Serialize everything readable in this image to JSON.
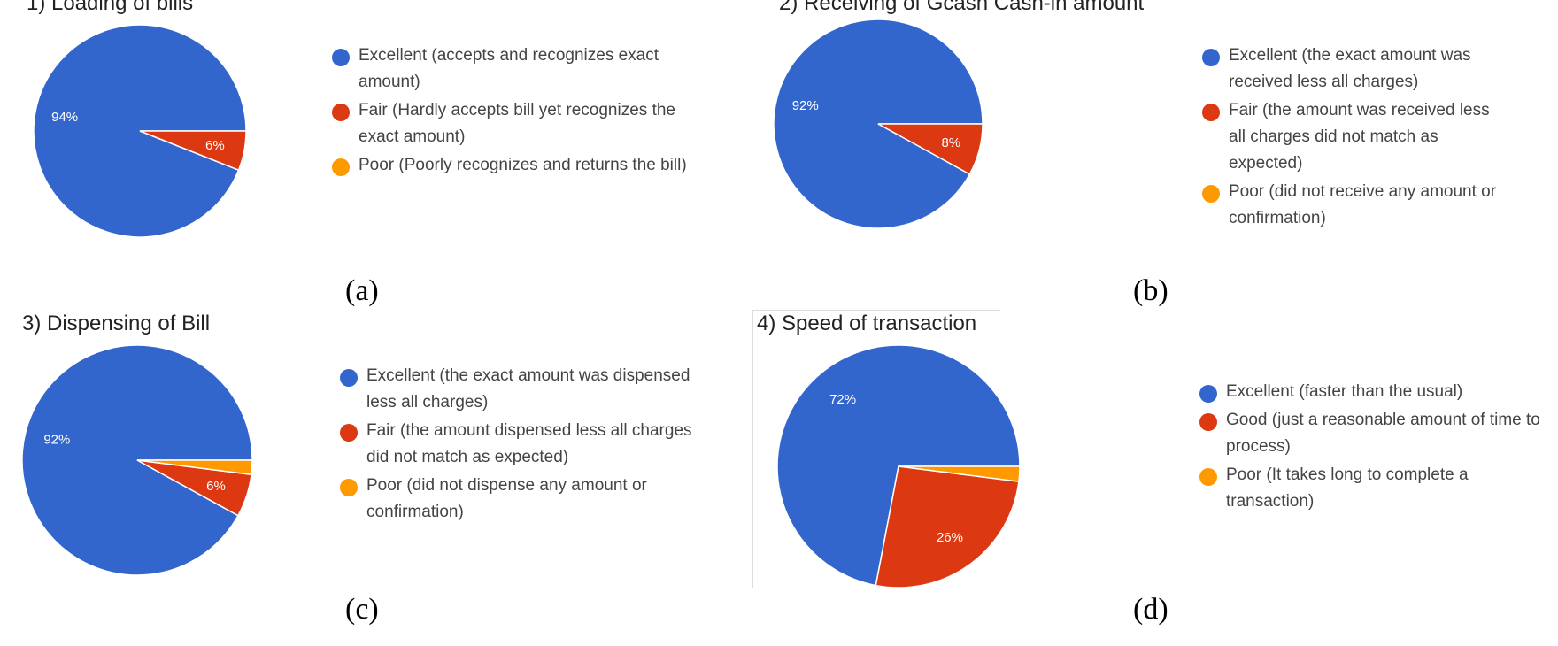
{
  "colors": {
    "blue": "#3366cc",
    "red": "#dc3912",
    "orange": "#ff9900"
  },
  "chart_data": [
    {
      "type": "pie",
      "title": "1) Loading of bills",
      "caption": "(a)",
      "categories": [
        "Excellent (accepts and recognizes exact amount)",
        "Fair (Hardly accepts bill yet recognizes the exact amount)",
        "Poor (Poorly recognizes and returns the bill)"
      ],
      "values": [
        94,
        6,
        0
      ],
      "value_labels": [
        "94%",
        "6%",
        ""
      ],
      "legend_position": "right"
    },
    {
      "type": "pie",
      "title": "2) Receiving of Gcash Cash-in amount",
      "caption": "(b)",
      "categories": [
        "Excellent (the exact amount was received less all charges)",
        "Fair (the amount was received less all charges did not match as expected)",
        "Poor (did not receive any amount or confirmation)"
      ],
      "values": [
        92,
        8,
        0
      ],
      "value_labels": [
        "92%",
        "8%",
        ""
      ],
      "legend_position": "right"
    },
    {
      "type": "pie",
      "title": "3) Dispensing of Bill",
      "caption": "(c)",
      "categories": [
        "Excellent (the exact amount was dispensed less all charges)",
        "Fair (the amount dispensed less all charges did not match as expected)",
        "Poor (did not dispense any amount or confirmation)"
      ],
      "values": [
        92,
        6,
        2
      ],
      "value_labels": [
        "92%",
        "6%",
        ""
      ],
      "legend_position": "right"
    },
    {
      "type": "pie",
      "title": "4) Speed of transaction",
      "caption": "(d)",
      "categories": [
        "Excellent (faster than the usual)",
        "Good (just a reasonable amount of time to process)",
        "Poor (It takes long to complete a transaction)"
      ],
      "values": [
        72,
        26,
        2
      ],
      "value_labels": [
        "72%",
        "26%",
        ""
      ],
      "legend_position": "right"
    }
  ]
}
